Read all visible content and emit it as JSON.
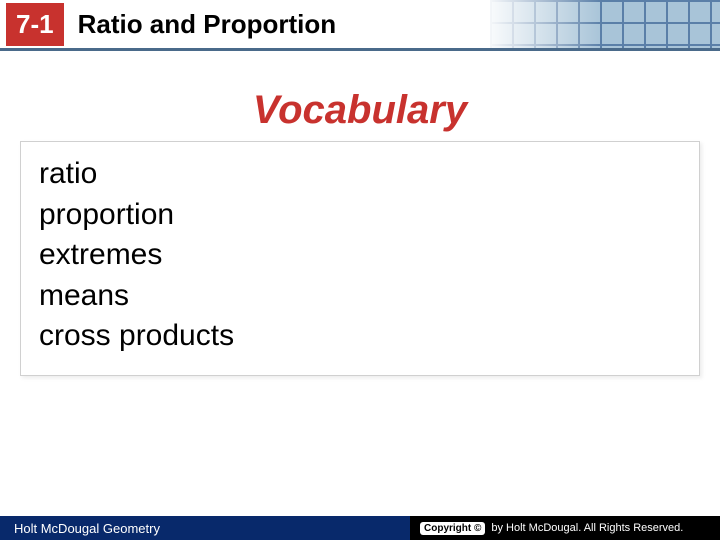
{
  "header": {
    "section_number": "7-1",
    "title": "Ratio and Proportion",
    "badge_bg": "#c8322e",
    "badge_fg": "#ffffff",
    "divider_color": "#4a6a8a",
    "grid_line_color": "#5a7fa8",
    "grid_bg": "#a8c4d8"
  },
  "vocab": {
    "heading": "Vocabulary",
    "heading_color": "#c8322e",
    "heading_fontsize": 40,
    "item_fontsize": 30,
    "box_border": "#d0d0d0",
    "items": [
      "ratio",
      "proportion",
      "extremes",
      "means",
      "cross products"
    ]
  },
  "footer": {
    "left_text": "Holt McDougal Geometry",
    "left_bg": "#08296b",
    "right_bg": "#000000",
    "copyright_label": "Copyright ©",
    "copyright_text": "by Holt McDougal. All Rights Reserved."
  }
}
